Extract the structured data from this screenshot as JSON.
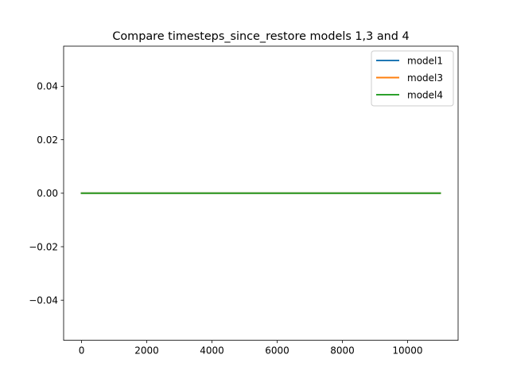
{
  "chart_data": {
    "type": "line",
    "title": "Compare timesteps_since_restore models 1,3 and 4",
    "xlabel": "",
    "ylabel": "",
    "xlim": [
      -550,
      11550
    ],
    "ylim": [
      -0.055,
      0.055
    ],
    "x_ticks": [
      0,
      2000,
      4000,
      6000,
      8000,
      10000
    ],
    "x_tick_labels": [
      "0",
      "2000",
      "4000",
      "6000",
      "8000",
      "10000"
    ],
    "y_ticks": [
      0.04,
      0.02,
      0.0,
      -0.02,
      -0.04
    ],
    "y_tick_labels": [
      "0.04",
      "0.02",
      "0.00",
      "−0.02",
      "−0.04"
    ],
    "grid": false,
    "legend_position": "top-right",
    "series": [
      {
        "name": "model1",
        "color": "#1f77b4",
        "x": [
          0,
          11000
        ],
        "y": [
          0,
          0
        ]
      },
      {
        "name": "model3",
        "color": "#ff7f0e",
        "x": [
          0,
          11000
        ],
        "y": [
          0,
          0
        ]
      },
      {
        "name": "model4",
        "color": "#2ca02c",
        "x": [
          0,
          11000
        ],
        "y": [
          0,
          0
        ]
      }
    ]
  }
}
